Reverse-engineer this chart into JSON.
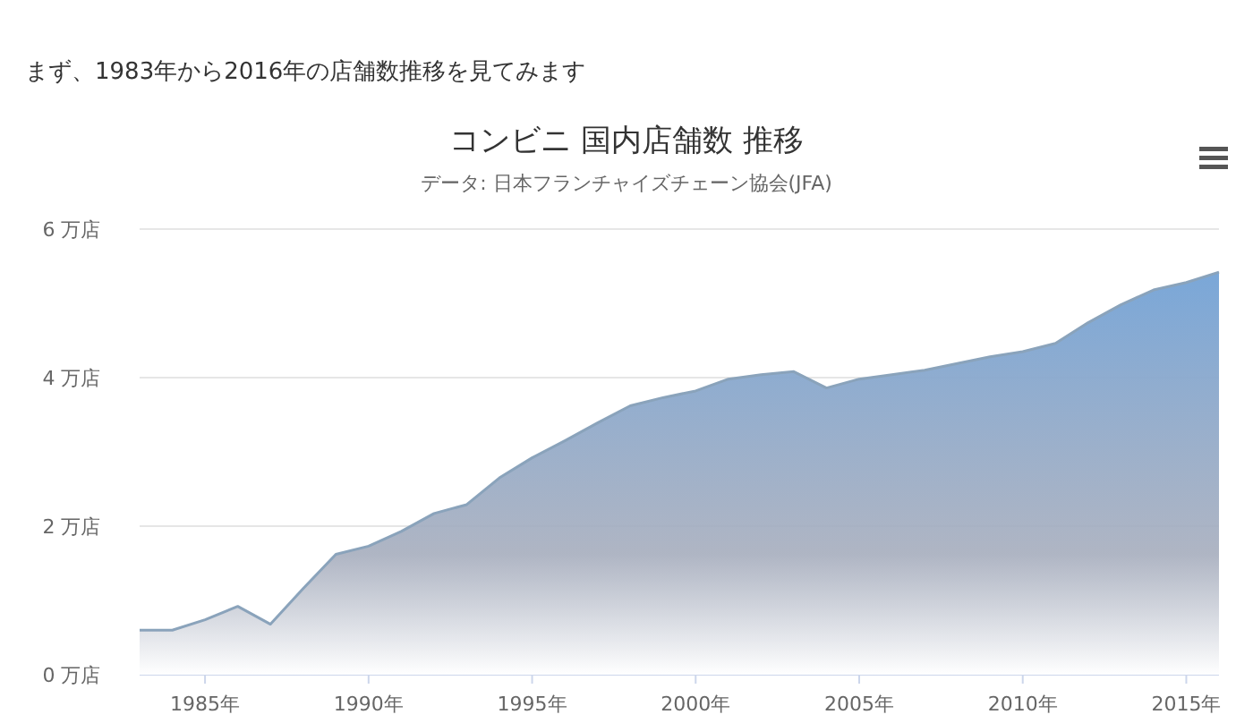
{
  "chart_data": {
    "type": "area",
    "title": "コンビニ 国内店舗数 推移",
    "subtitle": "データ: 日本フランチャイズチェーン協会(JFA)",
    "annotations": [
      "まず、1983年から2016年の店舗数推移を見てみます"
    ],
    "x": [
      1983,
      1984,
      1985,
      1986,
      1987,
      1988,
      1989,
      1990,
      1991,
      1992,
      1993,
      1994,
      1995,
      1996,
      1997,
      1998,
      1999,
      2000,
      2001,
      2002,
      2003,
      2004,
      2005,
      2006,
      2007,
      2008,
      2009,
      2010,
      2011,
      2012,
      2013,
      2014,
      2015,
      2016
    ],
    "series": [
      {
        "color": "#7aa7d8",
        "values": [
          0.6,
          0.6,
          0.74,
          0.92,
          0.68,
          1.16,
          1.62,
          1.73,
          1.93,
          2.17,
          2.29,
          2.65,
          2.92,
          3.15,
          3.39,
          3.62,
          3.73,
          3.82,
          3.98,
          4.04,
          4.08,
          3.86,
          3.98,
          4.04,
          4.1,
          4.19,
          4.28,
          4.35,
          4.46,
          4.74,
          4.98,
          5.18,
          5.28,
          5.42
        ]
      }
    ],
    "xlim": [
      1983,
      2016
    ],
    "xticks": [
      {
        "value": 1985,
        "label": "1985年"
      },
      {
        "value": 1990,
        "label": "1990年"
      },
      {
        "value": 1995,
        "label": "1995年"
      },
      {
        "value": 2000,
        "label": "2000年"
      },
      {
        "value": 2005,
        "label": "2005年"
      },
      {
        "value": 2010,
        "label": "2010年"
      },
      {
        "value": 2015,
        "label": "2015年"
      }
    ],
    "ylim": [
      0,
      6
    ],
    "yticks": [
      {
        "value": 0,
        "label": "0 万店"
      },
      {
        "value": 2,
        "label": "2 万店"
      },
      {
        "value": 4,
        "label": "4 万店"
      },
      {
        "value": 6,
        "label": "6 万店"
      }
    ],
    "grid": "y"
  }
}
